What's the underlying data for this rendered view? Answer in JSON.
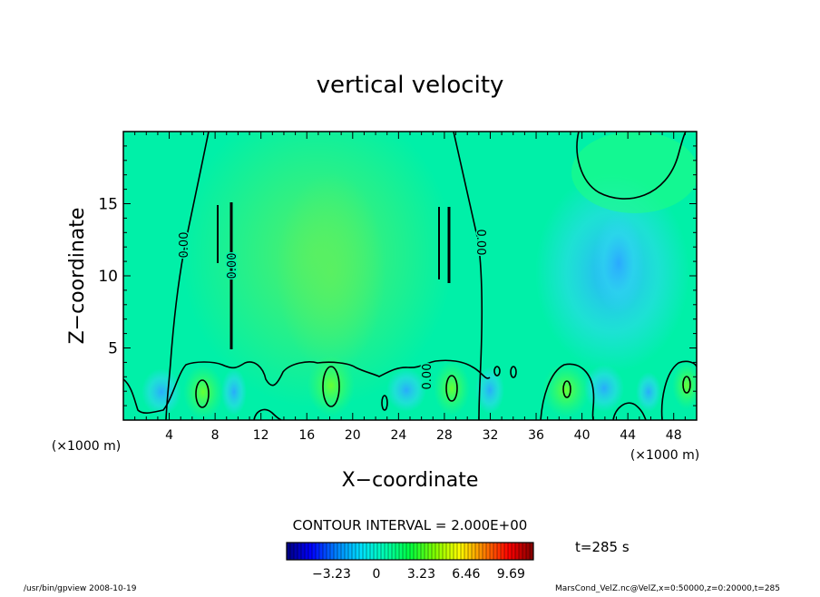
{
  "chart_data": {
    "type": "heatmap",
    "title": "vertical velocity",
    "xlabel": "X−coordinate",
    "ylabel": "Z−coordinate",
    "x_unit_left": "(×1000 m)",
    "x_unit_right": "(×1000 m)",
    "xlim": [
      0,
      50
    ],
    "ylim": [
      0,
      20
    ],
    "x_ticks": [
      4,
      8,
      12,
      16,
      20,
      24,
      28,
      32,
      36,
      40,
      44,
      48
    ],
    "y_ticks": [
      5,
      10,
      15
    ],
    "contour_interval": "CONTOUR INTERVAL = 2.000E+00",
    "contour_labels": [
      "0.00",
      "0.00",
      "0.00",
      "0.00"
    ],
    "time_label": "t=285 s",
    "colorbar": {
      "ticks": [
        "−3.23",
        "0",
        "3.23",
        "6.46",
        "9.69"
      ],
      "tick_values": [
        -3.23,
        0,
        3.23,
        6.46,
        9.69
      ],
      "range": [
        -6.46,
        11.3
      ],
      "colors": [
        "#000080",
        "#0000ff",
        "#0080ff",
        "#00e0ff",
        "#00ffb0",
        "#00ff40",
        "#80ff00",
        "#ffff00",
        "#ff8000",
        "#ff0000",
        "#800000"
      ]
    },
    "grid": false
  },
  "footer": {
    "left": "/usr/bin/gpview   2008-10-19",
    "right": "MarsCond_VelZ.nc@VelZ,x=0:50000,z=0:20000,t=285"
  }
}
